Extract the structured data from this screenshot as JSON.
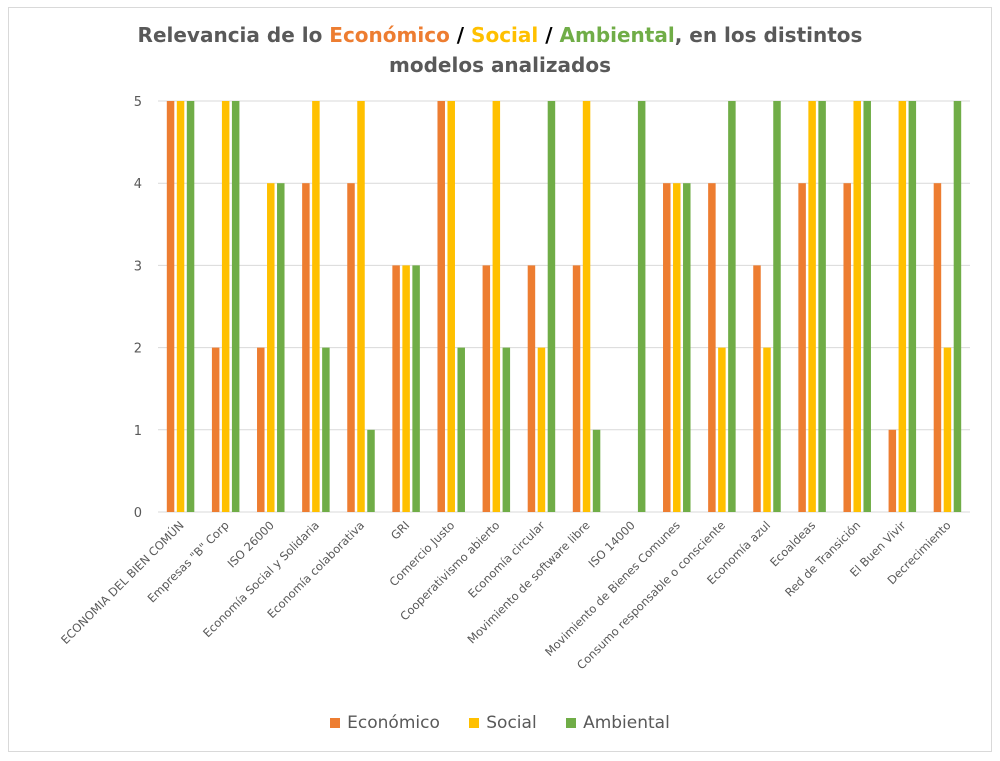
{
  "title": {
    "prefix": "Relevancia de lo ",
    "econ": "Económico",
    "sep1": " / ",
    "soc": "Social",
    "sep2": " / ",
    "amb": "Ambiental",
    "suffix": ", en los distintos",
    "line2": "modelos analizados"
  },
  "colors": {
    "economico": "#ed7d31",
    "social": "#ffc000",
    "ambiental": "#70ad47",
    "grid": "#d9d9d9",
    "text": "#595959"
  },
  "chart_data": {
    "type": "bar",
    "title": "Relevancia de lo Económico / Social / Ambiental, en los distintos modelos analizados",
    "xlabel": "",
    "ylabel": "",
    "ylim": [
      0,
      5
    ],
    "yticks": [
      0,
      1,
      2,
      3,
      4,
      5
    ],
    "grid": true,
    "legend_position": "bottom",
    "categories": [
      "ECONOMIA DEL BIEN COMÚN",
      "Empresas \"B\" Corp",
      "ISO 26000",
      "Economía Social y Solidaria",
      "Economía colaborativa",
      "GRI",
      "Comercio Justo",
      "Cooperativismo abierto",
      "Economía circular",
      "Movimiento de software libre",
      "ISO 14000",
      "Movimiento de Bienes Comunes",
      "Consumo responsable o consciente",
      "Economía azul",
      "Ecoaldeas",
      "Red de Transición",
      "El Buen Vivir",
      "Decrecimiento"
    ],
    "series": [
      {
        "name": "Económico",
        "color": "#ed7d31",
        "values": [
          5,
          2,
          2,
          4,
          4,
          3,
          5,
          3,
          3,
          3,
          0,
          4,
          4,
          3,
          4,
          4,
          1,
          4
        ]
      },
      {
        "name": "Social",
        "color": "#ffc000",
        "values": [
          5,
          5,
          4,
          5,
          5,
          3,
          5,
          5,
          2,
          5,
          0,
          4,
          2,
          2,
          5,
          5,
          5,
          2
        ]
      },
      {
        "name": "Ambiental",
        "color": "#70ad47",
        "values": [
          5,
          5,
          4,
          2,
          1,
          3,
          2,
          2,
          5,
          1,
          5,
          4,
          5,
          5,
          5,
          5,
          5,
          5
        ]
      }
    ]
  }
}
